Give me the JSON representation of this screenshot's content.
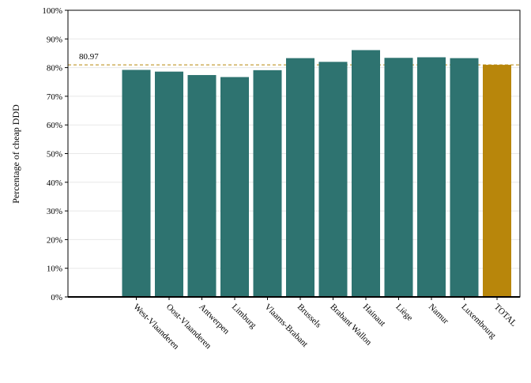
{
  "chart_data": {
    "type": "bar",
    "title": "",
    "xlabel": "",
    "ylabel": "Percentage of cheap DDD",
    "ylim": [
      0,
      100
    ],
    "yticks": [
      "0%",
      "10%",
      "20%",
      "30%",
      "40%",
      "50%",
      "60%",
      "70%",
      "80%",
      "90%",
      "100%"
    ],
    "ytick_values": [
      0,
      10,
      20,
      30,
      40,
      50,
      60,
      70,
      80,
      90,
      100
    ],
    "categories": [
      "West-Vlaanderen",
      "Oost-Vlaanderen",
      "Antwerpen",
      "Limburg",
      "Vlaams-Brabant",
      "Brussels",
      "Brabant Wallon",
      "Hainaut",
      "Liège",
      "Namur",
      "Luxembourg",
      "TOTAL"
    ],
    "values": [
      79.2,
      78.6,
      77.4,
      76.7,
      79.1,
      83.3,
      82.0,
      86.1,
      83.4,
      83.6,
      83.3,
      80.97
    ],
    "reference_line": {
      "value": 80.97,
      "label": "80.97"
    },
    "grid": true,
    "colors": {
      "bar": "#2e7370",
      "total_bar": "#b8860b",
      "reference_line": "#b8860b",
      "grid": "#e8e8e8"
    }
  }
}
